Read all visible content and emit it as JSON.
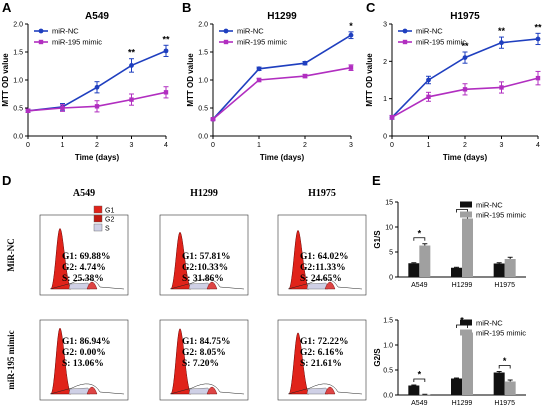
{
  "figure": {
    "panel_letters": [
      "A",
      "B",
      "C",
      "D",
      "E"
    ]
  },
  "chart_data": [
    {
      "type": "line",
      "title": "A549",
      "xlabel": "Time (days)",
      "ylabel": "MTT OD value",
      "x": [
        0,
        1,
        2,
        3,
        4
      ],
      "xlim": [
        0,
        4
      ],
      "ylim": [
        0,
        2.0
      ],
      "yticks": [
        "0.0",
        "0.5",
        "1.0",
        "1.5",
        "2.0"
      ],
      "xticks": [
        "0",
        "1",
        "2",
        "3",
        "4"
      ],
      "series": [
        {
          "name": "miR-NC",
          "values": [
            0.45,
            0.52,
            0.87,
            1.26,
            1.52
          ],
          "errors": [
            0.03,
            0.06,
            0.1,
            0.12,
            0.1
          ],
          "color": "#1f3fbf",
          "marker": "circle"
        },
        {
          "name": "miR-195 mimic",
          "values": [
            0.45,
            0.5,
            0.53,
            0.65,
            0.78
          ],
          "errors": [
            0.03,
            0.06,
            0.1,
            0.1,
            0.1
          ],
          "color": "#b12ec0",
          "marker": "square"
        }
      ],
      "annotations": [
        {
          "x": 3,
          "text": "**"
        },
        {
          "x": 4,
          "text": "**"
        }
      ],
      "legend": "top-left"
    },
    {
      "type": "line",
      "title": "H1299",
      "xlabel": "Time (days)",
      "ylabel": "MTT OD value",
      "x": [
        0,
        1,
        2,
        3
      ],
      "xlim": [
        0,
        3
      ],
      "ylim": [
        0,
        2.0
      ],
      "yticks": [
        "0.0",
        "0.5",
        "1.0",
        "1.5",
        "2.0"
      ],
      "xticks": [
        "0",
        "1",
        "2",
        "3"
      ],
      "series": [
        {
          "name": "miR-NC",
          "values": [
            0.3,
            1.2,
            1.3,
            1.8
          ],
          "errors": [
            0.02,
            0.03,
            0.03,
            0.06
          ],
          "color": "#1f3fbf",
          "marker": "circle"
        },
        {
          "name": "miR-195 mimic",
          "values": [
            0.3,
            1.0,
            1.07,
            1.22
          ],
          "errors": [
            0.02,
            0.03,
            0.03,
            0.05
          ],
          "color": "#b12ec0",
          "marker": "square"
        }
      ],
      "annotations": [
        {
          "x": 3,
          "text": "*"
        }
      ],
      "legend": "top-left"
    },
    {
      "type": "line",
      "title": "H1975",
      "xlabel": "Time (days)",
      "ylabel": "MTT OD value",
      "x": [
        0,
        1,
        2,
        3,
        4
      ],
      "xlim": [
        0,
        4
      ],
      "ylim": [
        0,
        3
      ],
      "yticks": [
        "0",
        "1",
        "2",
        "3"
      ],
      "xticks": [
        "0",
        "1",
        "2",
        "3",
        "4"
      ],
      "series": [
        {
          "name": "miR-NC",
          "values": [
            0.5,
            1.5,
            2.1,
            2.5,
            2.6
          ],
          "errors": [
            0.05,
            0.1,
            0.15,
            0.15,
            0.15
          ],
          "color": "#1f3fbf",
          "marker": "circle"
        },
        {
          "name": "miR-195 mimic",
          "values": [
            0.5,
            1.05,
            1.25,
            1.3,
            1.55
          ],
          "errors": [
            0.05,
            0.12,
            0.15,
            0.15,
            0.18
          ],
          "color": "#b12ec0",
          "marker": "square"
        }
      ],
      "annotations": [
        {
          "x": 2,
          "text": "**"
        },
        {
          "x": 3,
          "text": "**"
        },
        {
          "x": 4,
          "text": "**"
        }
      ],
      "legend": "top-left"
    },
    {
      "type": "bar",
      "ylabel": "G1/S",
      "categories": [
        "A549",
        "H1299",
        "H1975"
      ],
      "ylim": [
        0,
        15
      ],
      "yticks": [
        "0",
        "5",
        "10",
        "15"
      ],
      "series": [
        {
          "name": "miR-NC",
          "values": [
            2.75,
            1.85,
            2.7
          ],
          "errors": [
            0.1,
            0.1,
            0.15
          ],
          "color": "#111111"
        },
        {
          "name": "miR-195 mimic",
          "values": [
            6.3,
            11.7,
            3.6
          ],
          "errors": [
            0.35,
            0.6,
            0.35
          ],
          "color": "#a0a0a0"
        }
      ],
      "annotations": [
        {
          "category": "A549",
          "text": "*"
        },
        {
          "category": "H1299",
          "text": "*"
        }
      ],
      "legend": "top-right"
    },
    {
      "type": "bar",
      "ylabel": "G2/S",
      "categories": [
        "A549",
        "H1299",
        "H1975"
      ],
      "ylim": [
        0,
        1.5
      ],
      "yticks": [
        "0.0",
        "0.5",
        "1.0",
        "1.5"
      ],
      "series": [
        {
          "name": "miR-NC",
          "values": [
            0.19,
            0.33,
            0.45
          ],
          "errors": [
            0.01,
            0.01,
            0.02
          ],
          "color": "#111111"
        },
        {
          "name": "miR-195 mimic",
          "values": [
            0.01,
            1.25,
            0.27
          ],
          "errors": [
            0.005,
            0.03,
            0.03
          ],
          "color": "#a0a0a0"
        }
      ],
      "annotations": [
        {
          "category": "A549",
          "text": "*"
        },
        {
          "category": "H1299",
          "text": "*"
        },
        {
          "category": "H1975",
          "text": "*"
        }
      ],
      "legend": "top-right"
    }
  ],
  "flow": {
    "columns": [
      "A549",
      "H1299",
      "H1975"
    ],
    "rows": [
      "MiR-NC",
      "miR-195 mimic"
    ],
    "legend": [
      "G1",
      "G2",
      "S"
    ],
    "stats": [
      [
        {
          "g1": "G1: 69.88%",
          "g2": "G2: 4.74%",
          "s": "S: 25.38%",
          "g1_frac": 0.7
        },
        {
          "g1": "G1: 57.81%",
          "g2": "G2:10.33%",
          "s": "S: 31.86%",
          "g1_frac": 0.58
        },
        {
          "g1": "G1: 64.02%",
          "g2": "G2:11.33%",
          "s": "S: 24.65%",
          "g1_frac": 0.64
        }
      ],
      [
        {
          "g1": "G1: 86.94%",
          "g2": "G2: 0.00%",
          "s": "S: 13.06%",
          "g1_frac": 0.87
        },
        {
          "g1": "G1: 84.75%",
          "g2": "G2: 8.05%",
          "s": "S: 7.20%",
          "g1_frac": 0.85
        },
        {
          "g1": "G1: 72.22%",
          "g2": "G2: 6.16%",
          "s": "S: 21.61%",
          "g1_frac": 0.72
        }
      ]
    ]
  }
}
